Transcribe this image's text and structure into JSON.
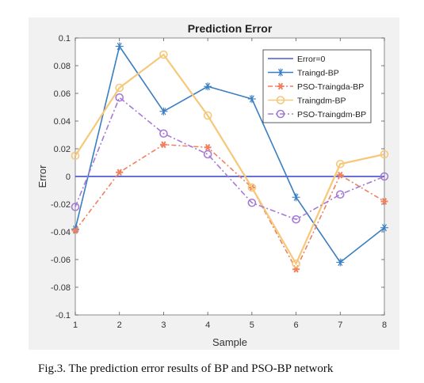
{
  "chart_data": {
    "type": "line",
    "title": "Prediction Error",
    "xlabel": "Sample",
    "ylabel": "Error",
    "xlim": [
      1,
      8
    ],
    "ylim": [
      -0.1,
      0.1
    ],
    "x": [
      1,
      2,
      3,
      4,
      5,
      6,
      7,
      8
    ],
    "xticks": [
      "1",
      "2",
      "3",
      "4",
      "5",
      "6",
      "7",
      "8"
    ],
    "yticks": [
      "0.1",
      "0.08",
      "0.06",
      "0.04",
      "0.02",
      "0",
      "-0.02",
      "-0.04",
      "-0.06",
      "-0.08",
      "-0.1"
    ],
    "yticks_values": [
      0.1,
      0.08,
      0.06,
      0.04,
      0.02,
      0,
      -0.02,
      -0.04,
      -0.06,
      -0.08,
      -0.1
    ],
    "grid": false,
    "legend_position": "top-right",
    "series": [
      {
        "name": "Error=0",
        "values": [
          0,
          0,
          0,
          0,
          0,
          0,
          0,
          0
        ],
        "color": "#4f5bd5",
        "dash": "",
        "marker": "none"
      },
      {
        "name": "Traingd-BP",
        "values": [
          -0.038,
          0.094,
          0.047,
          0.065,
          0.056,
          -0.015,
          -0.062,
          -0.037
        ],
        "color": "#3a7ec2",
        "dash": "",
        "marker": "star"
      },
      {
        "name": "PSO-Traingda-BP",
        "values": [
          -0.039,
          0.003,
          0.023,
          0.021,
          -0.008,
          -0.067,
          0.001,
          -0.018
        ],
        "color": "#f08060",
        "dash": "6,3,2,3",
        "marker": "asterisk"
      },
      {
        "name": "Traingdm-BP",
        "values": [
          0.015,
          0.064,
          0.088,
          0.044,
          -0.008,
          -0.063,
          0.009,
          0.016
        ],
        "color": "#f5c87a",
        "dash": "",
        "marker": "circle"
      },
      {
        "name": "PSO-Traingdm-BP",
        "values": [
          -0.022,
          0.057,
          0.031,
          0.016,
          -0.019,
          -0.031,
          -0.013,
          0.0
        ],
        "color": "#a57ad6",
        "dash": "7,3,2,3",
        "marker": "circle"
      }
    ]
  },
  "caption": "Fig.3.  The prediction error results of BP and PSO-BP network"
}
